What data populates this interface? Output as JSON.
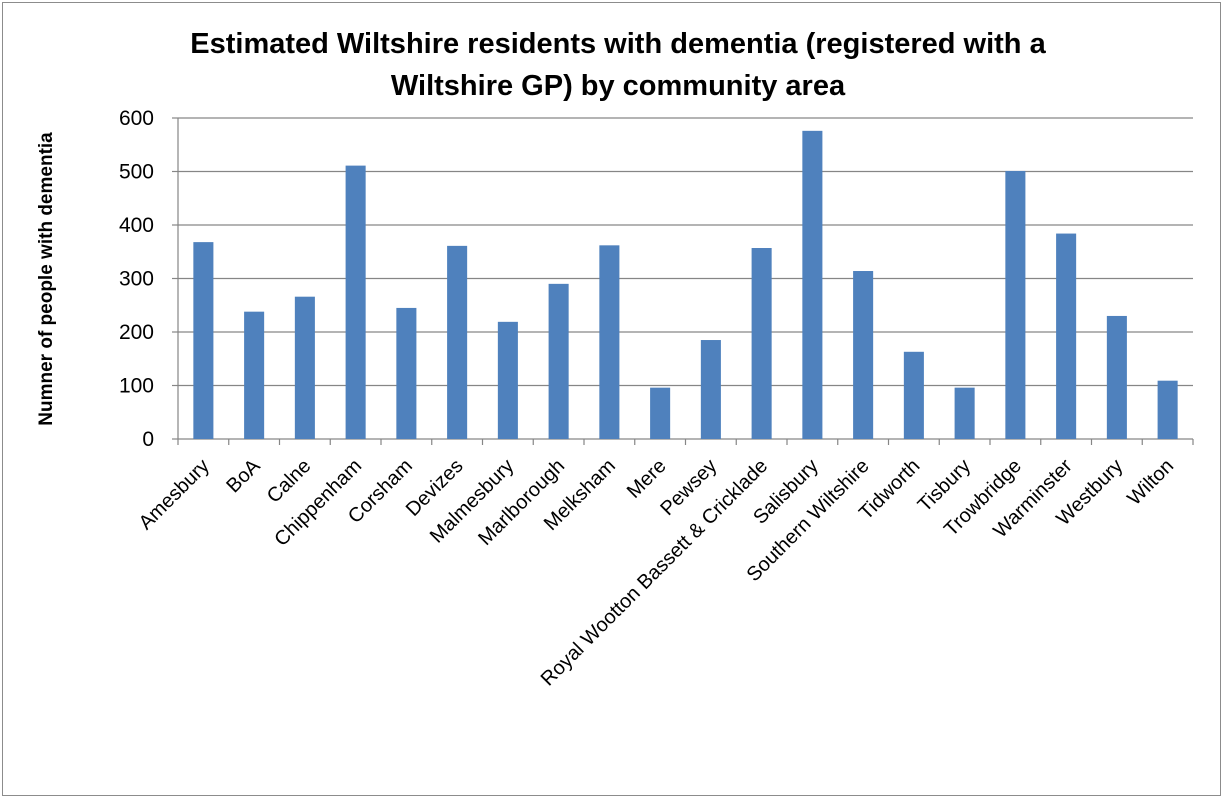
{
  "chart_data": {
    "type": "bar",
    "title": "Estimated Wiltshire residents with dementia (registered with a Wiltshire GP) by community area",
    "title_lines": [
      "Estimated Wiltshire residents with dementia (registered with a",
      "Wiltshire GP) by community area"
    ],
    "xlabel": "",
    "ylabel": "Numner of people with dementia",
    "ylim": [
      0,
      600
    ],
    "yticks": [
      0,
      100,
      200,
      300,
      400,
      500,
      600
    ],
    "grid": true,
    "legend": "none",
    "bar_color": "#4F81BD",
    "categories": [
      "Amesbury",
      "BoA",
      "Calne",
      "Chippenham",
      "Corsham",
      "Devizes",
      "Malmesbury",
      "Marlborough",
      "Melksham",
      "Mere",
      "Pewsey",
      "Royal Wootton Bassett & Cricklade",
      "Salisbury",
      "Southern Wiltshire",
      "Tidworth",
      "Tisbury",
      "Trowbridge",
      "Warminster",
      "Westbury",
      "Wilton"
    ],
    "values": [
      368,
      238,
      266,
      511,
      245,
      361,
      219,
      290,
      362,
      96,
      185,
      357,
      576,
      314,
      163,
      96,
      501,
      384,
      230,
      109
    ]
  }
}
